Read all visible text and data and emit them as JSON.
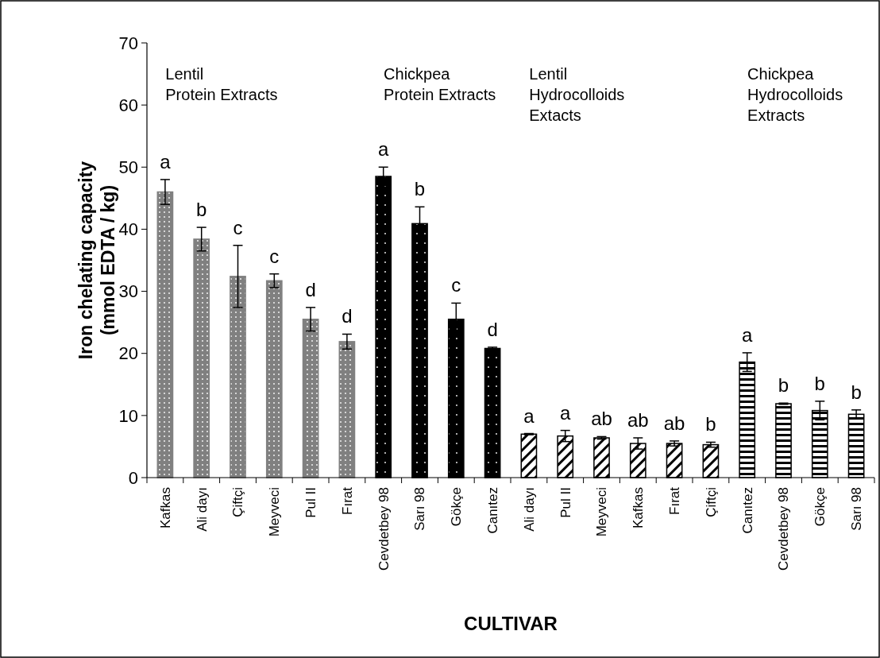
{
  "chart_data": {
    "type": "bar",
    "xlabel": "CULTIVAR",
    "ylabel": "Iron chelating capacity\n(mmol EDTA / kg)",
    "categories": [
      "Kafkas",
      "Ali dayı",
      "Çiftçi",
      "Meyveci",
      "Pul II",
      "Fırat",
      "Cevdetbey 98",
      "Sarı 98",
      "Gökçe",
      "Canıtez",
      "Ali dayı",
      "Pul II",
      "Meyveci",
      "Kafkas",
      "Fırat",
      "Çiftçi",
      "Canıtez",
      "Cevdetbey 98",
      "Gökçe",
      "Sarı 98"
    ],
    "series": [
      {
        "color": "#808080",
        "values": [
          46,
          38.4,
          32.4,
          31.7,
          25.5,
          21.9,
          null,
          null,
          null,
          null,
          null,
          null,
          null,
          null,
          null,
          null,
          null,
          null,
          null,
          null
        ],
        "errors": [
          2,
          1.9,
          5,
          1.1,
          1.9,
          1.2,
          null,
          null,
          null,
          null,
          null,
          null,
          null,
          null,
          null,
          null,
          null,
          null,
          null,
          null
        ]
      },
      {
        "color": "#000000",
        "values": [
          null,
          null,
          null,
          null,
          null,
          null,
          48.5,
          40.9,
          25.5,
          20.8,
          null,
          null,
          null,
          null,
          null,
          null,
          null,
          null,
          null,
          null
        ],
        "errors": [
          null,
          null,
          null,
          null,
          null,
          null,
          1.5,
          2.7,
          2.6,
          0.2,
          null,
          null,
          null,
          null,
          null,
          null,
          null,
          null,
          null,
          null
        ]
      },
      {
        "color": "#000000",
        "values": [
          null,
          null,
          null,
          null,
          null,
          null,
          null,
          null,
          null,
          null,
          7,
          6.7,
          6.4,
          5.5,
          5.5,
          5.3,
          null,
          null,
          null,
          null
        ],
        "errors": [
          null,
          null,
          null,
          null,
          null,
          null,
          null,
          null,
          null,
          null,
          0.1,
          0.9,
          0.2,
          0.9,
          0.4,
          0.4,
          null,
          null,
          null,
          null
        ]
      },
      {
        "color": "#000000",
        "values": [
          null,
          null,
          null,
          null,
          null,
          null,
          null,
          null,
          null,
          null,
          null,
          null,
          null,
          null,
          null,
          null,
          18.6,
          11.9,
          10.8,
          10.2
        ],
        "errors": [
          null,
          null,
          null,
          null,
          null,
          null,
          null,
          null,
          null,
          null,
          null,
          null,
          null,
          null,
          null,
          null,
          1.5,
          0.1,
          1.5,
          0.7
        ]
      }
    ],
    "ylim": [
      0,
      70
    ],
    "yticks": [
      0,
      10,
      20,
      30,
      40,
      50,
      60,
      70
    ],
    "grid": false,
    "annotations": [
      "Lentil\nProtein Extracts",
      "Chickpea\nProtein Extracts",
      "Lentil\nHydrocolloids\nExtacts",
      "Chickpea\nHydrocolloids\nExtracts",
      "a",
      "b",
      "c",
      "c",
      "d",
      "d",
      "a",
      "b",
      "c",
      "d",
      "a",
      "a",
      "ab",
      "ab",
      "ab",
      "b",
      "a",
      "b",
      "b",
      "b"
    ]
  }
}
